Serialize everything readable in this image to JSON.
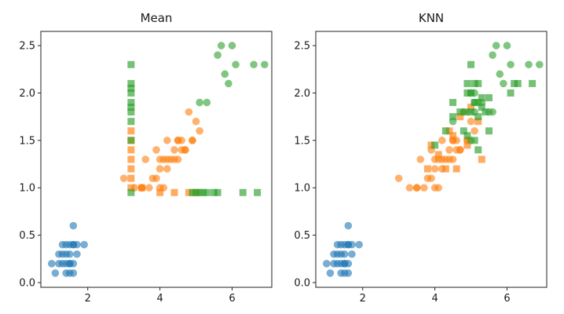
{
  "chart_data": [
    {
      "type": "scatter",
      "title": "Mean",
      "xlabel": "",
      "ylabel": "",
      "xlim": [
        0.7,
        7.1
      ],
      "ylim": [
        -0.05,
        2.65
      ],
      "xticks": [
        2,
        4,
        6
      ],
      "yticks": [
        0.0,
        0.5,
        1.0,
        1.5,
        2.0,
        2.5
      ],
      "xtick_labels": [
        "2",
        "4",
        "6"
      ],
      "ytick_labels": [
        "0.0",
        "0.5",
        "1.0",
        "1.5",
        "2.0",
        "2.5"
      ],
      "grid": false,
      "series": [
        {
          "marker": "circle",
          "color": "#1f77b4",
          "points": [
            [
              1.4,
              0.2
            ],
            [
              1.3,
              0.2
            ],
            [
              1.5,
              0.2
            ],
            [
              1.7,
              0.4
            ],
            [
              1.4,
              0.3
            ],
            [
              1.5,
              0.1
            ],
            [
              1.6,
              0.2
            ],
            [
              1.1,
              0.1
            ],
            [
              1.2,
              0.2
            ],
            [
              1.3,
              0.4
            ],
            [
              1.7,
              0.3
            ],
            [
              1.5,
              0.4
            ],
            [
              1.0,
              0.2
            ],
            [
              1.9,
              0.4
            ],
            [
              1.6,
              0.4
            ],
            [
              1.6,
              0.6
            ],
            [
              1.4,
              0.1
            ],
            [
              1.5,
              0.3
            ],
            [
              1.2,
              0.3
            ],
            [
              1.3,
              0.3
            ],
            [
              1.5,
              0.2
            ],
            [
              1.6,
              0.4
            ],
            [
              1.4,
              0.4
            ],
            [
              1.6,
              0.1
            ]
          ]
        },
        {
          "marker": "circle",
          "color": "#ff7f0e",
          "points": [
            [
              4.7,
              1.4
            ],
            [
              4.5,
              1.5
            ],
            [
              4.9,
              1.5
            ],
            [
              4.0,
              1.3
            ],
            [
              4.6,
              1.5
            ],
            [
              3.3,
              1.0
            ],
            [
              3.9,
              1.4
            ],
            [
              3.5,
              1.0
            ],
            [
              4.2,
              1.5
            ],
            [
              4.0,
              1.0
            ],
            [
              4.7,
              1.4
            ],
            [
              3.6,
              1.3
            ],
            [
              4.4,
              1.4
            ],
            [
              4.1,
              1.0
            ],
            [
              4.5,
              1.5
            ],
            [
              3.9,
              1.1
            ],
            [
              4.8,
              1.8
            ],
            [
              4.3,
              1.3
            ],
            [
              5.0,
              1.7
            ],
            [
              3.0,
              1.1
            ],
            [
              3.8,
              1.1
            ],
            [
              3.7,
              1.0
            ],
            [
              5.1,
              1.6
            ],
            [
              4.4,
              1.3
            ],
            [
              4.1,
              1.3
            ],
            [
              4.9,
              1.5
            ],
            [
              4.6,
              1.4
            ],
            [
              4.0,
              1.2
            ],
            [
              4.2,
              1.2
            ],
            [
              4.5,
              1.3
            ],
            [
              3.5,
              1.0
            ],
            [
              4.2,
              1.3
            ]
          ]
        },
        {
          "marker": "square",
          "color": "#ff7f0e",
          "points": [
            [
              3.2,
              1.6
            ],
            [
              3.2,
              1.5
            ],
            [
              3.2,
              1.4
            ],
            [
              3.2,
              1.3
            ],
            [
              3.2,
              1.2
            ],
            [
              3.2,
              1.1
            ],
            [
              3.2,
              1.0
            ],
            [
              4.0,
              0.95
            ],
            [
              3.5,
              1.0
            ],
            [
              4.4,
              0.95
            ],
            [
              4.8,
              0.95
            ],
            [
              5.0,
              0.95
            ]
          ]
        },
        {
          "marker": "circle",
          "color": "#2ca02c",
          "points": [
            [
              6.0,
              2.5
            ],
            [
              5.1,
              1.9
            ],
            [
              5.9,
              2.1
            ],
            [
              5.6,
              2.4
            ],
            [
              5.8,
              2.2
            ],
            [
              6.6,
              2.3
            ],
            [
              5.7,
              2.5
            ],
            [
              5.3,
              1.9
            ],
            [
              6.9,
              2.3
            ],
            [
              6.1,
              2.3
            ]
          ]
        },
        {
          "marker": "square",
          "color": "#2ca02c",
          "points": [
            [
              3.2,
              2.3
            ],
            [
              3.2,
              2.1
            ],
            [
              3.2,
              2.05
            ],
            [
              3.2,
              2.0
            ],
            [
              3.2,
              1.9
            ],
            [
              3.2,
              1.85
            ],
            [
              3.2,
              1.8
            ],
            [
              3.2,
              1.7
            ],
            [
              3.2,
              1.5
            ],
            [
              3.2,
              0.95
            ],
            [
              4.9,
              0.95
            ],
            [
              5.0,
              0.95
            ],
            [
              5.1,
              0.95
            ],
            [
              5.2,
              0.95
            ],
            [
              5.3,
              0.95
            ],
            [
              5.5,
              0.95
            ],
            [
              5.6,
              0.95
            ],
            [
              6.3,
              0.95
            ],
            [
              6.7,
              0.95
            ]
          ]
        }
      ]
    },
    {
      "type": "scatter",
      "title": "KNN",
      "xlabel": "",
      "ylabel": "",
      "xlim": [
        0.7,
        7.1
      ],
      "ylim": [
        -0.05,
        2.65
      ],
      "xticks": [
        2,
        4,
        6
      ],
      "yticks": [
        0.0,
        0.5,
        1.0,
        1.5,
        2.0,
        2.5
      ],
      "xtick_labels": [
        "2",
        "4",
        "6"
      ],
      "ytick_labels": [
        "0.0",
        "0.5",
        "1.0",
        "1.5",
        "2.0",
        "2.5"
      ],
      "grid": false,
      "series": [
        {
          "marker": "circle",
          "color": "#1f77b4",
          "points": [
            [
              1.4,
              0.2
            ],
            [
              1.3,
              0.2
            ],
            [
              1.5,
              0.2
            ],
            [
              1.7,
              0.4
            ],
            [
              1.4,
              0.3
            ],
            [
              1.5,
              0.1
            ],
            [
              1.6,
              0.2
            ],
            [
              1.1,
              0.1
            ],
            [
              1.2,
              0.2
            ],
            [
              1.3,
              0.4
            ],
            [
              1.7,
              0.3
            ],
            [
              1.5,
              0.4
            ],
            [
              1.0,
              0.2
            ],
            [
              1.9,
              0.4
            ],
            [
              1.6,
              0.4
            ],
            [
              1.6,
              0.6
            ],
            [
              1.4,
              0.1
            ],
            [
              1.5,
              0.3
            ],
            [
              1.2,
              0.3
            ],
            [
              1.3,
              0.3
            ],
            [
              1.5,
              0.2
            ],
            [
              1.6,
              0.4
            ],
            [
              1.4,
              0.4
            ],
            [
              1.6,
              0.1
            ]
          ]
        },
        {
          "marker": "circle",
          "color": "#ff7f0e",
          "points": [
            [
              4.7,
              1.4
            ],
            [
              4.5,
              1.5
            ],
            [
              4.9,
              1.5
            ],
            [
              4.0,
              1.3
            ],
            [
              4.6,
              1.5
            ],
            [
              3.3,
              1.0
            ],
            [
              3.9,
              1.4
            ],
            [
              3.5,
              1.0
            ],
            [
              4.2,
              1.5
            ],
            [
              4.0,
              1.0
            ],
            [
              4.7,
              1.4
            ],
            [
              3.6,
              1.3
            ],
            [
              4.4,
              1.4
            ],
            [
              4.1,
              1.0
            ],
            [
              4.5,
              1.5
            ],
            [
              3.9,
              1.1
            ],
            [
              4.8,
              1.8
            ],
            [
              4.3,
              1.3
            ],
            [
              5.0,
              1.7
            ],
            [
              3.0,
              1.1
            ],
            [
              3.8,
              1.1
            ],
            [
              3.7,
              1.0
            ],
            [
              5.1,
              1.6
            ],
            [
              4.4,
              1.3
            ],
            [
              4.1,
              1.3
            ],
            [
              4.9,
              1.5
            ],
            [
              4.6,
              1.4
            ],
            [
              4.0,
              1.2
            ],
            [
              4.2,
              1.2
            ],
            [
              4.5,
              1.3
            ],
            [
              3.5,
              1.0
            ],
            [
              4.2,
              1.3
            ]
          ]
        },
        {
          "marker": "square",
          "color": "#ff7f0e",
          "points": [
            [
              4.3,
              1.2
            ],
            [
              3.8,
              1.2
            ],
            [
              4.6,
              1.2
            ],
            [
              4.1,
              1.35
            ],
            [
              4.9,
              1.45
            ],
            [
              4.4,
              1.6
            ],
            [
              5.0,
              1.85
            ],
            [
              5.2,
              1.7
            ],
            [
              4.5,
              1.55
            ],
            [
              3.9,
              1.45
            ],
            [
              5.3,
              1.3
            ],
            [
              4.7,
              1.75
            ]
          ]
        },
        {
          "marker": "circle",
          "color": "#2ca02c",
          "points": [
            [
              6.0,
              2.5
            ],
            [
              5.1,
              1.9
            ],
            [
              5.9,
              2.1
            ],
            [
              5.6,
              2.4
            ],
            [
              5.8,
              2.2
            ],
            [
              6.6,
              2.3
            ],
            [
              5.7,
              2.5
            ],
            [
              5.3,
              1.9
            ],
            [
              6.9,
              2.3
            ],
            [
              6.1,
              2.3
            ],
            [
              5.0,
              1.5
            ],
            [
              5.1,
              1.8
            ],
            [
              4.9,
              1.8
            ],
            [
              4.8,
              1.8
            ],
            [
              5.1,
              2.0
            ],
            [
              5.5,
              1.8
            ],
            [
              5.0,
              2.0
            ],
            [
              5.2,
              1.9
            ],
            [
              4.5,
              1.7
            ],
            [
              5.6,
              1.8
            ]
          ]
        },
        {
          "marker": "square",
          "color": "#2ca02c",
          "points": [
            [
              4.0,
              1.45
            ],
            [
              4.3,
              1.6
            ],
            [
              4.5,
              1.75
            ],
            [
              4.5,
              1.9
            ],
            [
              4.8,
              1.6
            ],
            [
              4.9,
              1.55
            ],
            [
              4.9,
              2.1
            ],
            [
              5.0,
              1.8
            ],
            [
              5.0,
              2.0
            ],
            [
              5.0,
              2.3
            ],
            [
              5.1,
              1.9
            ],
            [
              5.1,
              2.1
            ],
            [
              5.1,
              1.5
            ],
            [
              5.2,
              1.75
            ],
            [
              5.2,
              2.1
            ],
            [
              5.3,
              1.85
            ],
            [
              5.3,
              1.95
            ],
            [
              5.4,
              1.8
            ],
            [
              5.5,
              1.6
            ],
            [
              5.5,
              1.95
            ],
            [
              6.1,
              2.0
            ],
            [
              6.2,
              2.1
            ],
            [
              6.3,
              2.1
            ],
            [
              6.7,
              2.1
            ],
            [
              4.7,
              1.8
            ],
            [
              5.2,
              1.4
            ],
            [
              4.9,
              2.0
            ]
          ]
        }
      ]
    }
  ]
}
